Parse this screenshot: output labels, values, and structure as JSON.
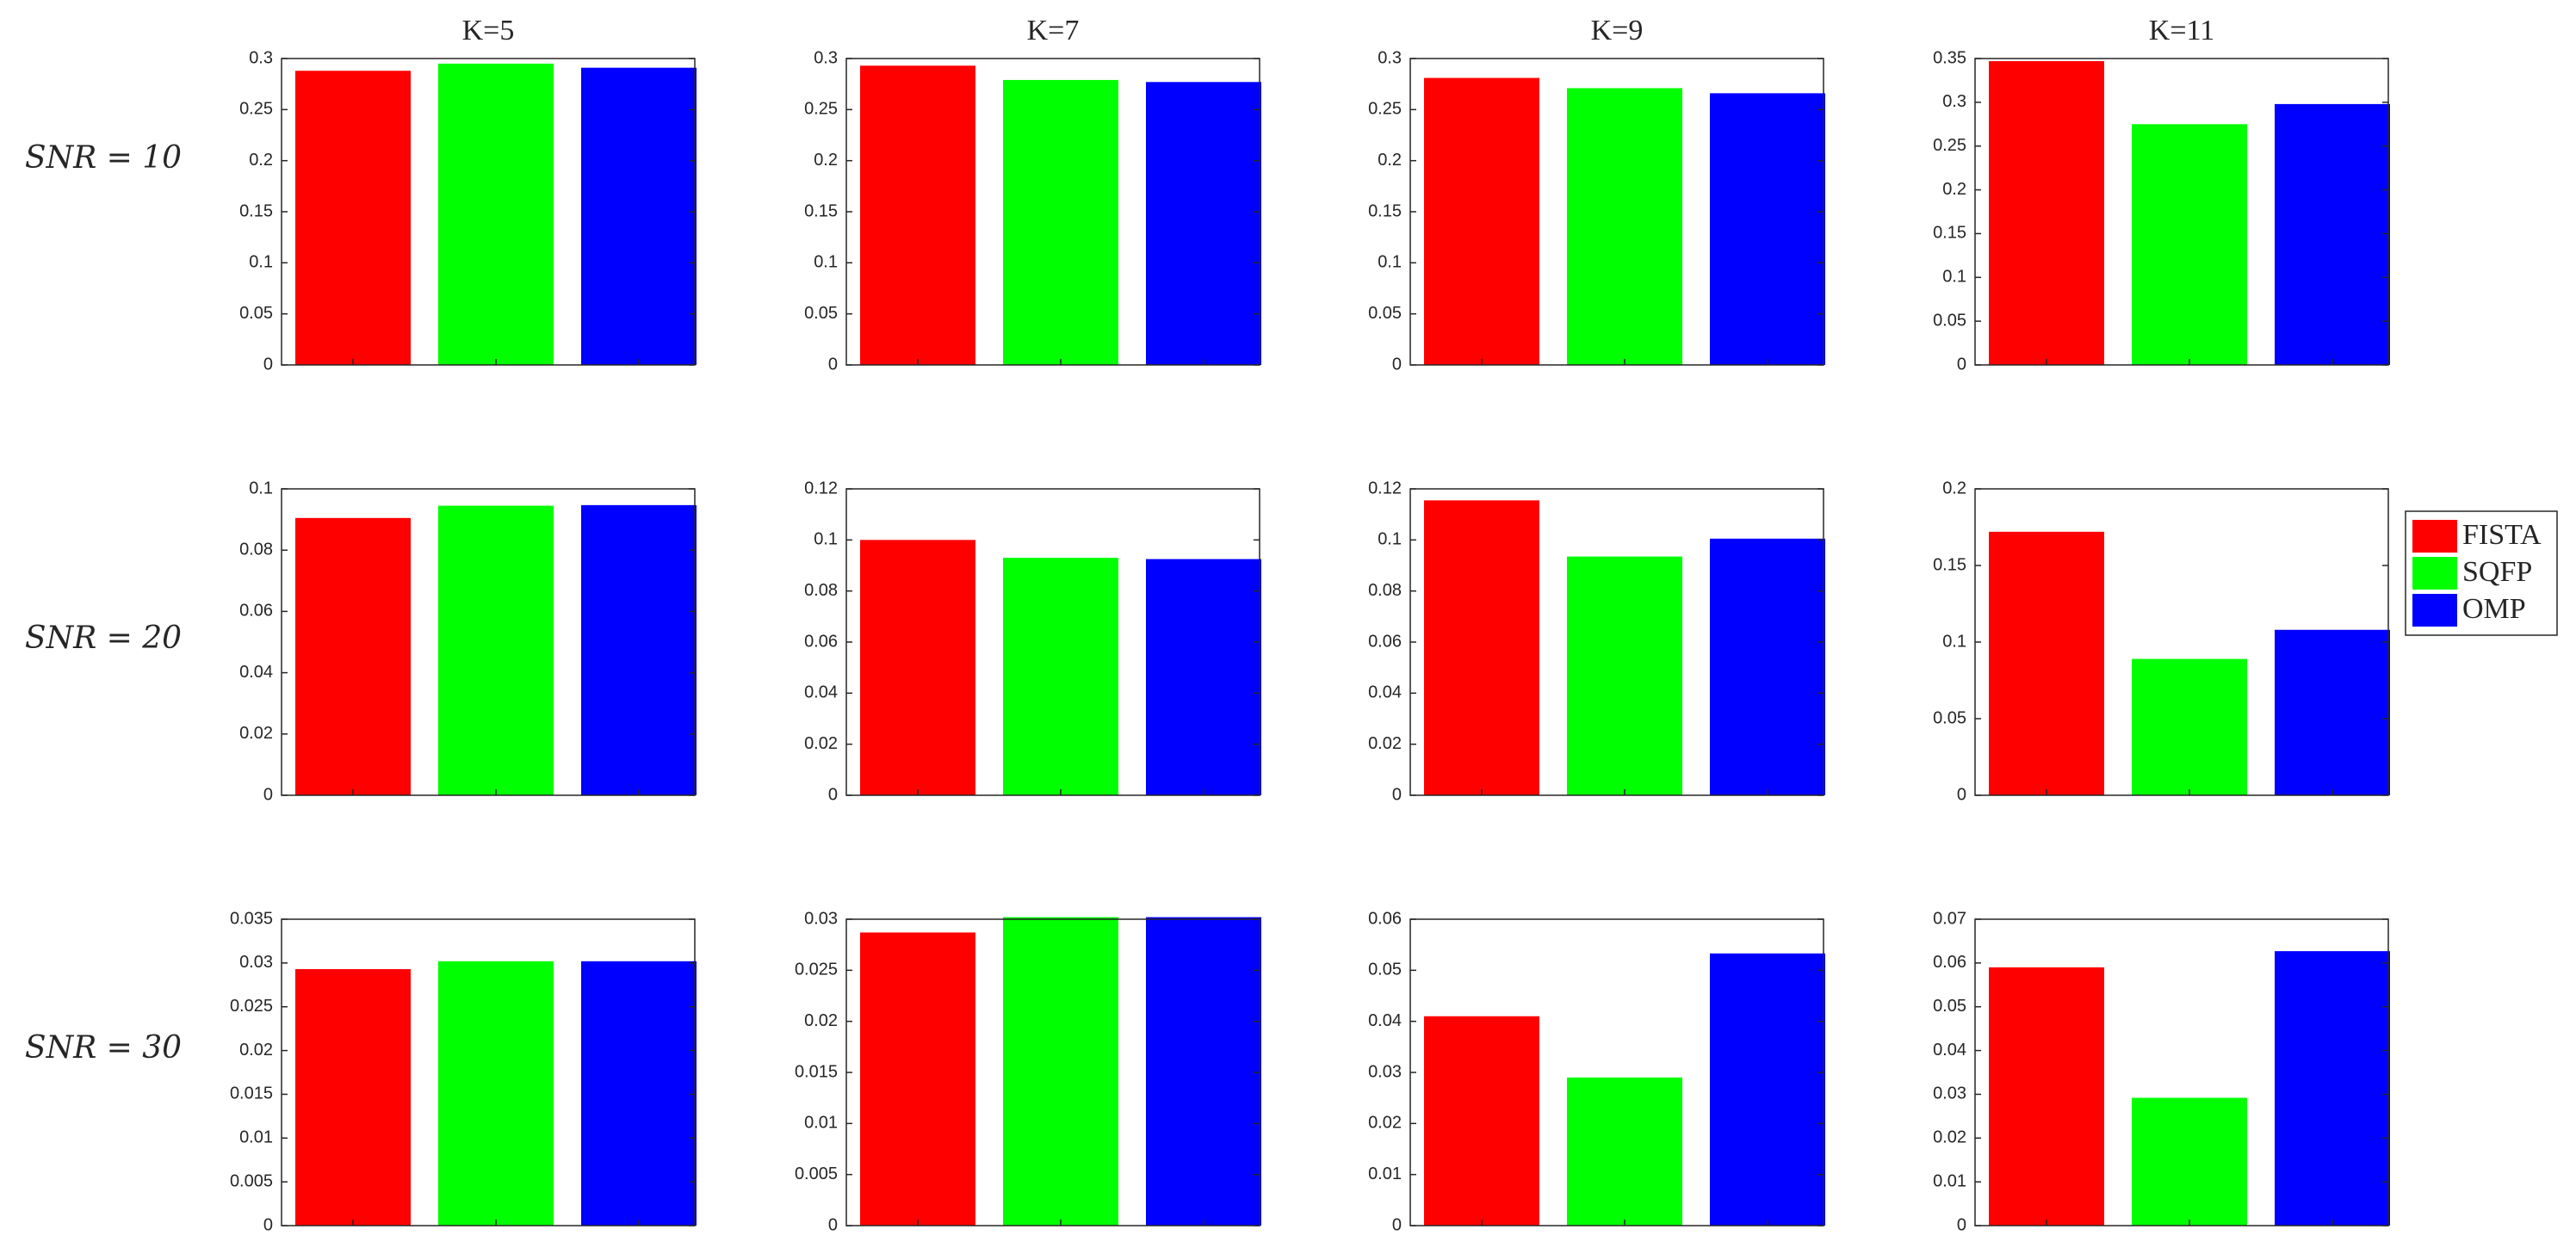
{
  "col_titles": [
    "K=5",
    "K=7",
    "K=9",
    "K=11"
  ],
  "row_labels": [
    "SNR = 10",
    "SNR = 20",
    "SNR = 30"
  ],
  "colors": {
    "FISTA": "#ff0000",
    "SQFP": "#00ff00",
    "OMP": "#0000ff"
  },
  "legend": {
    "placement": "right",
    "items": [
      "FISTA",
      "SQFP",
      "OMP"
    ]
  },
  "chart_data": [
    {
      "type": "bar",
      "title": "K=5",
      "row_label": "SNR = 10",
      "categories": [
        "FISTA",
        "SQFP",
        "OMP"
      ],
      "values": [
        0.288,
        0.295,
        0.291
      ],
      "ylim": [
        0,
        0.3
      ],
      "yticks": [
        0,
        0.05,
        0.1,
        0.15,
        0.2,
        0.25,
        0.3
      ],
      "yticklabels": [
        "0",
        "0.05",
        "0.1",
        "0.15",
        "0.2",
        "0.25",
        "0.3"
      ]
    },
    {
      "type": "bar",
      "title": "K=7",
      "row_label": "SNR = 10",
      "categories": [
        "FISTA",
        "SQFP",
        "OMP"
      ],
      "values": [
        0.293,
        0.279,
        0.277
      ],
      "ylim": [
        0,
        0.3
      ],
      "yticks": [
        0,
        0.05,
        0.1,
        0.15,
        0.2,
        0.25,
        0.3
      ],
      "yticklabels": [
        "0",
        "0.05",
        "0.1",
        "0.15",
        "0.2",
        "0.25",
        "0.3"
      ]
    },
    {
      "type": "bar",
      "title": "K=9",
      "row_label": "SNR = 10",
      "categories": [
        "FISTA",
        "SQFP",
        "OMP"
      ],
      "values": [
        0.281,
        0.271,
        0.266
      ],
      "ylim": [
        0,
        0.3
      ],
      "yticks": [
        0,
        0.05,
        0.1,
        0.15,
        0.2,
        0.25,
        0.3
      ],
      "yticklabels": [
        "0",
        "0.05",
        "0.1",
        "0.15",
        "0.2",
        "0.25",
        "0.3"
      ]
    },
    {
      "type": "bar",
      "title": "K=11",
      "row_label": "SNR = 10",
      "categories": [
        "FISTA",
        "SQFP",
        "OMP"
      ],
      "values": [
        0.347,
        0.275,
        0.298
      ],
      "ylim": [
        0,
        0.35
      ],
      "yticks": [
        0,
        0.05,
        0.1,
        0.15,
        0.2,
        0.25,
        0.3,
        0.35
      ],
      "yticklabels": [
        "0",
        "0.05",
        "0.1",
        "0.15",
        "0.2",
        "0.25",
        "0.3",
        "0.35"
      ]
    },
    {
      "type": "bar",
      "title": "K=5",
      "row_label": "SNR = 20",
      "categories": [
        "FISTA",
        "SQFP",
        "OMP"
      ],
      "values": [
        0.0905,
        0.0945,
        0.0947
      ],
      "ylim": [
        0,
        0.1
      ],
      "yticks": [
        0,
        0.02,
        0.04,
        0.06,
        0.08,
        0.1
      ],
      "yticklabels": [
        "0",
        "0.02",
        "0.04",
        "0.06",
        "0.08",
        "0.1"
      ]
    },
    {
      "type": "bar",
      "title": "K=7",
      "row_label": "SNR = 20",
      "categories": [
        "FISTA",
        "SQFP",
        "OMP"
      ],
      "values": [
        0.1,
        0.093,
        0.0925
      ],
      "ylim": [
        0,
        0.12
      ],
      "yticks": [
        0,
        0.02,
        0.04,
        0.06,
        0.08,
        0.1,
        0.12
      ],
      "yticklabels": [
        "0",
        "0.02",
        "0.04",
        "0.06",
        "0.08",
        "0.1",
        "0.12"
      ]
    },
    {
      "type": "bar",
      "title": "K=9",
      "row_label": "SNR = 20",
      "categories": [
        "FISTA",
        "SQFP",
        "OMP"
      ],
      "values": [
        0.1155,
        0.0935,
        0.1005
      ],
      "ylim": [
        0,
        0.12
      ],
      "yticks": [
        0,
        0.02,
        0.04,
        0.06,
        0.08,
        0.1,
        0.12
      ],
      "yticklabels": [
        "0",
        "0.02",
        "0.04",
        "0.06",
        "0.08",
        "0.1",
        "0.12"
      ]
    },
    {
      "type": "bar",
      "title": "K=11",
      "row_label": "SNR = 20",
      "categories": [
        "FISTA",
        "SQFP",
        "OMP"
      ],
      "values": [
        0.172,
        0.089,
        0.108
      ],
      "ylim": [
        0,
        0.2
      ],
      "yticks": [
        0,
        0.05,
        0.1,
        0.15,
        0.2
      ],
      "yticklabels": [
        "0",
        "0.05",
        "0.1",
        "0.15",
        "0.2"
      ]
    },
    {
      "type": "bar",
      "title": "K=5",
      "row_label": "SNR = 30",
      "categories": [
        "FISTA",
        "SQFP",
        "OMP"
      ],
      "values": [
        0.0293,
        0.0302,
        0.0302
      ],
      "ylim": [
        0,
        0.035
      ],
      "yticks": [
        0,
        0.005,
        0.01,
        0.015,
        0.02,
        0.025,
        0.03,
        0.035
      ],
      "yticklabels": [
        "0",
        "0.005",
        "0.01",
        "0.015",
        "0.02",
        "0.025",
        "0.03",
        "0.035"
      ]
    },
    {
      "type": "bar",
      "title": "K=7",
      "row_label": "SNR = 30",
      "categories": [
        "FISTA",
        "SQFP",
        "OMP"
      ],
      "values": [
        0.0287,
        0.0302,
        0.0302
      ],
      "ylim": [
        0,
        0.03
      ],
      "yticks": [
        0,
        0.005,
        0.01,
        0.015,
        0.02,
        0.025,
        0.03
      ],
      "yticklabels": [
        "0",
        "0.005",
        "0.01",
        "0.015",
        "0.02",
        "0.025",
        "0.03"
      ]
    },
    {
      "type": "bar",
      "title": "K=9",
      "row_label": "SNR = 30",
      "categories": [
        "FISTA",
        "SQFP",
        "OMP"
      ],
      "values": [
        0.041,
        0.029,
        0.0533
      ],
      "ylim": [
        0,
        0.06
      ],
      "yticks": [
        0,
        0.01,
        0.02,
        0.03,
        0.04,
        0.05,
        0.06
      ],
      "yticklabels": [
        "0",
        "0.01",
        "0.02",
        "0.03",
        "0.04",
        "0.05",
        "0.06"
      ]
    },
    {
      "type": "bar",
      "title": "K=11",
      "row_label": "SNR = 30",
      "categories": [
        "FISTA",
        "SQFP",
        "OMP"
      ],
      "values": [
        0.059,
        0.0292,
        0.0627
      ],
      "ylim": [
        0,
        0.07
      ],
      "yticks": [
        0,
        0.01,
        0.02,
        0.03,
        0.04,
        0.05,
        0.06,
        0.07
      ],
      "yticklabels": [
        "0",
        "0.01",
        "0.02",
        "0.03",
        "0.04",
        "0.05",
        "0.06",
        "0.07"
      ]
    }
  ]
}
